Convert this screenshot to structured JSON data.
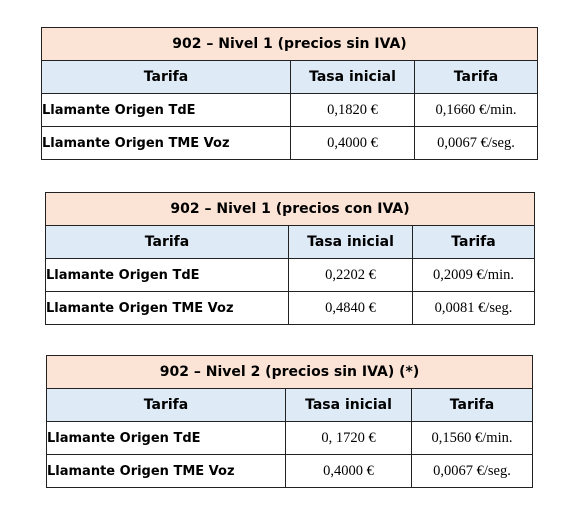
{
  "tables": [
    {
      "title": "902 – Nivel 1 (precios sin IVA)",
      "headers": [
        "Tarifa",
        "Tasa inicial",
        "Tarifa"
      ],
      "rows": [
        [
          "Llamante Origen TdE",
          "0,1820 €",
          "0,1660 €/min."
        ],
        [
          "Llamante Origen TME Voz",
          "0,4000 €",
          "0,0067 €/seg."
        ]
      ]
    },
    {
      "title": "902 – Nivel 1 (precios con IVA)",
      "headers": [
        "Tarifa",
        "Tasa inicial",
        "Tarifa"
      ],
      "rows": [
        [
          "Llamante Origen TdE",
          "0,2202 €",
          "0,2009 €/min."
        ],
        [
          "Llamante Origen TME Voz",
          "0,4840 €",
          "0,0081 €/seg."
        ]
      ]
    },
    {
      "title": "902 – Nivel 2 (precios sin IVA) (*)",
      "headers": [
        "Tarifa",
        "Tasa inicial",
        "Tarifa"
      ],
      "rows": [
        [
          "Llamante Origen TdE",
          "0, 1720 €",
          "0,1560 €/min."
        ],
        [
          "Llamante Origen TME Voz",
          "0,4000 €",
          "0,0067 €/seg."
        ]
      ]
    }
  ]
}
